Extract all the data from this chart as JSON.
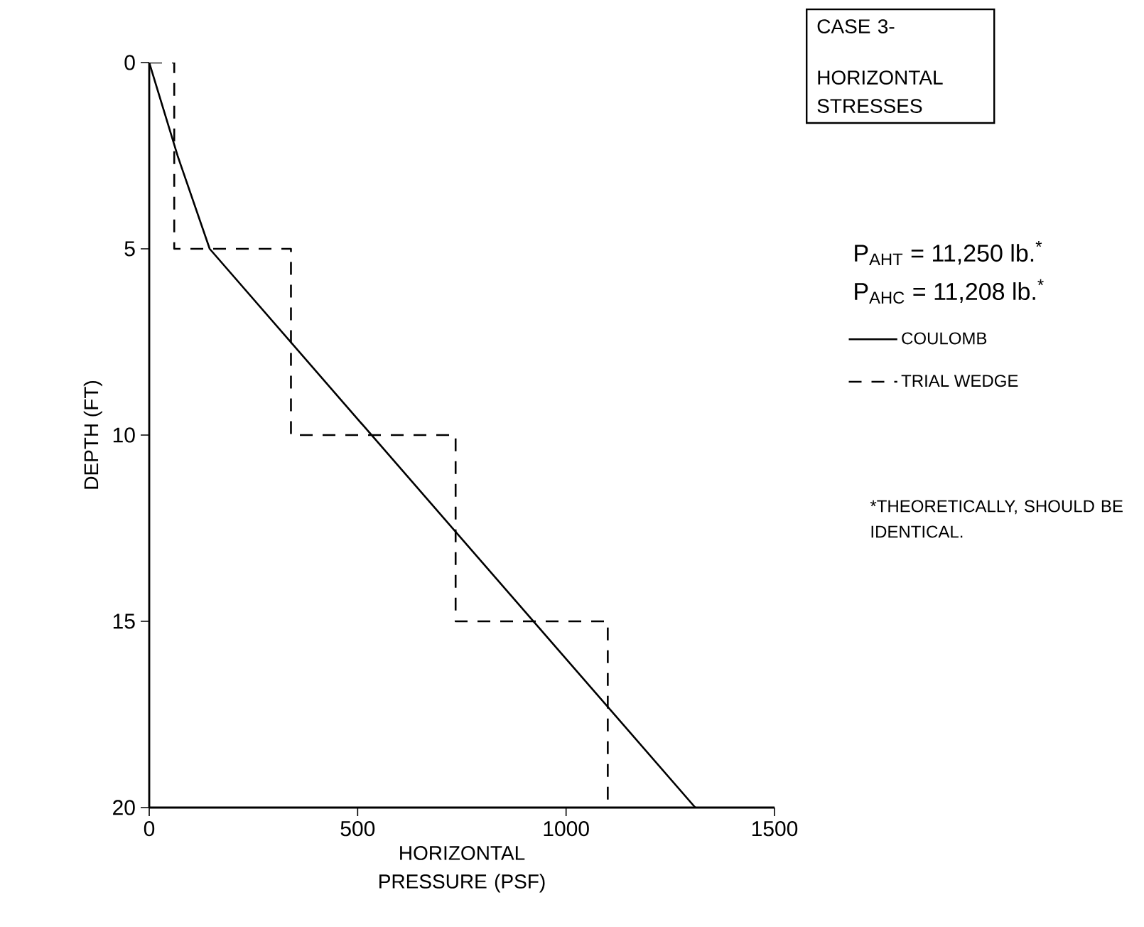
{
  "chart_data": {
    "type": "line",
    "title": "CASE 3-",
    "subtitle": "HORIZONTAL STRESSES",
    "xlabel": "HORIZONTAL PRESSURE (PSF)",
    "ylabel": "DEPTH (FT)",
    "xlim": [
      0,
      1500
    ],
    "xticks": [
      0,
      500,
      1000,
      1500
    ],
    "ylim": [
      20,
      0
    ],
    "yticks": [
      0,
      5,
      10,
      15,
      20
    ],
    "grid": false,
    "legend": "right",
    "marker": "none",
    "series": [
      {
        "name": "COULOMB",
        "color": "#000000",
        "line_style": "solid",
        "x": [
          0,
          68,
          145,
          1310
        ],
        "values": [
          0,
          2.5,
          5,
          20
        ]
      },
      {
        "name": "TRIAL WEDGE",
        "color": "#000000",
        "line_style": "dashed",
        "x": [
          0,
          60,
          60,
          340,
          340,
          735,
          735,
          1100,
          1100
        ],
        "values": [
          0,
          0,
          5,
          5,
          10,
          10,
          15,
          15,
          20
        ]
      }
    ],
    "annotations": [
      "P$_{AHT}$ = 11,250 lb.$^{*}$",
      "P$_{AHC}$ = 11,208 lb.$^{*}$",
      "*THEORETICALLY, SHOULD BE IDENTICAL."
    ]
  }
}
